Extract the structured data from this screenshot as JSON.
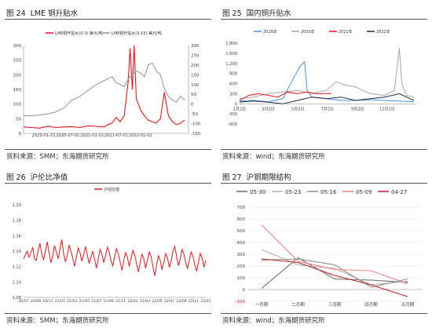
{
  "figures": [
    {
      "number": "图 24",
      "title": "LME 铜升贴水",
      "source": "资料来源：SMM；东海期货研究所"
    },
    {
      "number": "图 25",
      "title": "国内铜升贴水",
      "source": "资料来源：wind；东海期货研究所"
    },
    {
      "number": "图 26",
      "title": "沪伦比净值",
      "source": "资料来源：SMM；东海期货研究所"
    },
    {
      "number": "图 27",
      "title": "沪铜期限结构",
      "source": "资料来源：wind；东海期货研究所"
    }
  ],
  "chart_data": [
    {
      "type": "line",
      "title": "",
      "x_ticks": [
        "2020-01-01",
        "2020-07-01",
        "2021-01-01",
        "2021-07-01",
        "2022-01-01"
      ],
      "x_range": [
        "2019-08-01",
        "2022-12-31"
      ],
      "y_left_ticks": [
        "300",
        "250",
        "200",
        "150",
        "100",
        "50",
        "0"
      ],
      "y_left_range": [
        0,
        300
      ],
      "y_right_ticks": [
        "300",
        "250",
        "200",
        "150",
        "100",
        "50",
        "0",
        "-50",
        "-100",
        "-150"
      ],
      "y_right_range": [
        -150,
        300
      ],
      "series": [
        {
          "name": "LME铜升贴水(0-3) 美元/吨",
          "axis": "left",
          "color": "#e8141b",
          "x": [
            "2019-08-01",
            "2019-10-01",
            "2019-12-01",
            "2020-02-01",
            "2020-04-01",
            "2020-06-01",
            "2020-08-01",
            "2020-10-01",
            "2020-12-01",
            "2021-02-01",
            "2021-04-01",
            "2021-05-01",
            "2021-06-01",
            "2021-07-01",
            "2021-08-01",
            "2021-09-01",
            "2021-10-01",
            "2021-10-15",
            "2021-11-01",
            "2021-11-15",
            "2021-12-01",
            "2022-01-01",
            "2022-02-01",
            "2022-03-01",
            "2022-04-01",
            "2022-05-01",
            "2022-06-01",
            "2022-07-01",
            "2022-08-01",
            "2022-09-01",
            "2022-10-01",
            "2022-11-01",
            "2022-12-01"
          ],
          "y": [
            22,
            20,
            18,
            25,
            20,
            22,
            23,
            20,
            26,
            24,
            22,
            30,
            35,
            55,
            40,
            60,
            180,
            290,
            150,
            300,
            120,
            80,
            60,
            45,
            40,
            35,
            50,
            140,
            60,
            40,
            30,
            35,
            45
          ]
        },
        {
          "name": "LME铜升贴水(3-15) 美元/吨",
          "axis": "right",
          "color": "#9a9a9a",
          "x": [
            "2019-08-01",
            "2019-10-01",
            "2019-12-01",
            "2020-02-01",
            "2020-04-01",
            "2020-06-01",
            "2020-08-01",
            "2020-10-01",
            "2020-12-01",
            "2021-02-01",
            "2021-04-01",
            "2021-05-01",
            "2021-06-01",
            "2021-07-01",
            "2021-08-01",
            "2021-09-01",
            "2021-10-01",
            "2021-11-01",
            "2021-12-01",
            "2022-01-01",
            "2022-02-01",
            "2022-03-01",
            "2022-04-01",
            "2022-05-01",
            "2022-06-01",
            "2022-07-01",
            "2022-08-01",
            "2022-09-01",
            "2022-10-01",
            "2022-11-01",
            "2022-12-01"
          ],
          "y": [
            -60,
            -60,
            -55,
            -50,
            -40,
            -20,
            20,
            40,
            70,
            100,
            120,
            130,
            140,
            110,
            100,
            90,
            130,
            150,
            170,
            160,
            140,
            200,
            210,
            170,
            150,
            80,
            40,
            20,
            10,
            40,
            20
          ]
        }
      ]
    },
    {
      "type": "line",
      "title": "",
      "x_ticks": [
        "1月2日",
        "3月2日",
        "5月2日",
        "7月2日",
        "9月2日",
        "11月2日"
      ],
      "y_ticks": [
        "1,800",
        "1,500",
        "1,200",
        "900",
        "600",
        "300",
        "0",
        "-300",
        "-600"
      ],
      "y_range": [
        -600,
        1800
      ],
      "series": [
        {
          "name": "2019年",
          "color": "#4a90d9",
          "x": [
            1,
            30,
            60,
            90,
            110,
            125,
            135,
            140,
            150,
            180,
            210,
            240,
            270,
            300,
            330,
            360
          ],
          "y": [
            80,
            100,
            60,
            150,
            700,
            1100,
            1250,
            400,
            200,
            150,
            100,
            100,
            120,
            100,
            80,
            60
          ]
        },
        {
          "name": "2020年",
          "color": "#a5a5a5",
          "x": [
            1,
            30,
            60,
            90,
            120,
            150,
            180,
            200,
            220,
            240,
            270,
            300,
            320,
            330,
            335,
            345,
            360
          ],
          "y": [
            150,
            200,
            300,
            350,
            400,
            300,
            400,
            650,
            550,
            500,
            300,
            250,
            400,
            1650,
            600,
            250,
            200
          ]
        },
        {
          "name": "2021年",
          "color": "#e8141b",
          "x": [
            1,
            20,
            40,
            60,
            80,
            100,
            120,
            140,
            160,
            180,
            190
          ],
          "y": [
            100,
            250,
            300,
            250,
            200,
            350,
            300,
            350,
            300,
            300,
            300
          ]
        },
        {
          "name": "2022年",
          "color": "#1f2a44",
          "x": [
            1,
            30,
            60,
            90,
            120,
            150,
            180,
            210,
            240,
            270,
            300,
            330,
            360
          ],
          "y": [
            50,
            80,
            50,
            0,
            100,
            200,
            150,
            200,
            100,
            150,
            200,
            300,
            100
          ]
        }
      ]
    },
    {
      "type": "line",
      "title": "",
      "x_ticks": [
        "20/07",
        "20/09",
        "20/11",
        "21/01",
        "21/03",
        "21/05",
        "21/07",
        "21/09",
        "21/11",
        "22/01",
        "22/03",
        "22/05",
        "22/07",
        "22/09",
        "22/11",
        "23/01"
      ],
      "y_ticks": [
        "1.20",
        "1.18",
        "1.16",
        "1.14",
        "1.12",
        "1.10",
        "1.08"
      ],
      "y_range": [
        1.08,
        1.2
      ],
      "series": [
        {
          "name": "沪伦比值",
          "color": "#e8141b",
          "y": [
            1.13,
            1.135,
            1.14,
            1.132,
            1.138,
            1.145,
            1.13,
            1.128,
            1.141,
            1.15,
            1.136,
            1.129,
            1.14,
            1.152,
            1.138,
            1.125,
            1.134,
            1.147,
            1.139,
            1.13,
            1.142,
            1.155,
            1.137,
            1.126,
            1.135,
            1.148,
            1.14,
            1.131,
            1.12,
            1.133,
            1.144,
            1.138,
            1.127,
            1.136,
            1.146,
            1.135,
            1.124,
            1.132,
            1.14,
            1.129,
            1.118,
            1.13,
            1.142,
            1.136,
            1.125,
            1.134,
            1.145,
            1.139,
            1.127,
            1.121,
            1.133,
            1.143,
            1.137,
            1.126,
            1.115,
            1.128,
            1.138,
            1.132,
            1.12,
            1.131,
            1.141,
            1.135,
            1.124,
            1.113,
            1.126,
            1.136,
            1.13,
            1.118,
            1.128,
            1.139,
            1.133,
            1.12,
            1.108,
            1.122,
            1.134,
            1.128,
            1.116,
            1.125,
            1.137,
            1.131,
            1.119,
            1.127,
            1.14,
            1.146,
            1.133,
            1.121,
            1.13,
            1.142,
            1.136,
            1.125,
            1.117,
            1.129,
            1.139,
            1.133,
            1.122,
            1.114,
            1.126,
            1.137,
            1.131,
            1.119,
            1.128
          ]
        }
      ]
    },
    {
      "type": "line",
      "title": "",
      "categories": [
        "一月期",
        "二月期",
        "三月期",
        "四月期",
        "五月期"
      ],
      "y_ticks": [
        "700",
        "600",
        "500",
        "400",
        "300",
        "200",
        "100",
        "0",
        "-100"
      ],
      "y_range": [
        -100,
        700
      ],
      "series": [
        {
          "name": "05-30",
          "color": "#6b6b6b",
          "values": [
            10,
            270,
            90,
            80,
            60
          ]
        },
        {
          "name": "05-23",
          "color": "#b0b0b0",
          "values": [
            340,
            210,
            180,
            40,
            70
          ]
        },
        {
          "name": "05-16",
          "color": "#8e8e8e",
          "values": [
            250,
            260,
            210,
            20,
            90
          ]
        },
        {
          "name": "05-09",
          "color": "#f08080",
          "values": [
            550,
            240,
            170,
            160,
            50
          ]
        },
        {
          "name": "04-27",
          "color": "#c0201f",
          "values": [
            260,
            230,
            120,
            40,
            -60
          ]
        }
      ]
    }
  ]
}
